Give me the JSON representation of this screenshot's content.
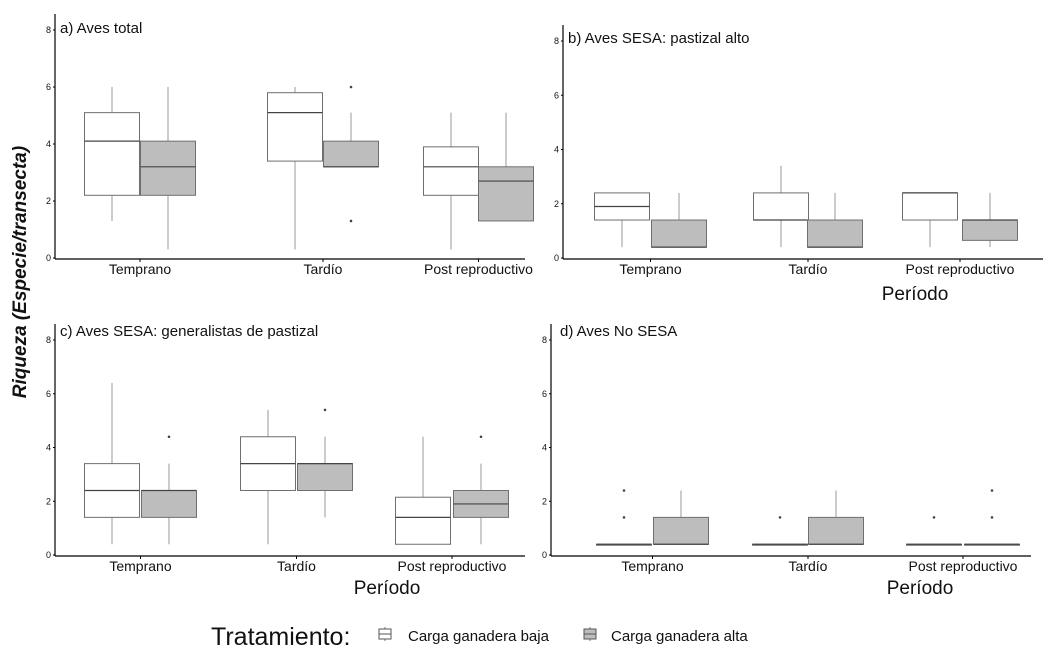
{
  "figure": {
    "ylabel": "Riqueza (Especie/transecta)",
    "legend": {
      "title": "Tratamiento:",
      "items": [
        {
          "label": "Carga ganadera baja",
          "color": "#ffffff"
        },
        {
          "label": "Carga ganadera alta",
          "color": "#bdbdbd"
        }
      ]
    }
  },
  "chart_data": [
    {
      "type": "boxplot",
      "title": "a) Aves total",
      "xlabel": "",
      "ylim": [
        0,
        8
      ],
      "yticks": [
        0,
        2,
        4,
        6,
        8
      ],
      "categories": [
        "Temprano",
        "Tardío",
        "Post reproductivo"
      ],
      "series": [
        {
          "name": "Carga ganadera baja",
          "color": "#ffffff",
          "stats": [
            {
              "min": 1.3,
              "q1": 2.2,
              "median": 4.1,
              "q3": 5.1,
              "max": 6.0,
              "outliers": []
            },
            {
              "min": 0.3,
              "q1": 3.4,
              "median": 5.1,
              "q3": 5.8,
              "max": 6.0,
              "outliers": []
            },
            {
              "min": 0.3,
              "q1": 2.2,
              "median": 3.2,
              "q3": 3.9,
              "max": 5.1,
              "outliers": []
            }
          ]
        },
        {
          "name": "Carga ganadera alta",
          "color": "#bdbdbd",
          "stats": [
            {
              "min": 0.3,
              "q1": 2.2,
              "median": 3.2,
              "q3": 4.1,
              "max": 6.0,
              "outliers": []
            },
            {
              "min": 3.2,
              "q1": 3.2,
              "median": 3.2,
              "q3": 4.1,
              "max": 5.1,
              "outliers": [
                1.3,
                6.0
              ]
            },
            {
              "min": 1.3,
              "q1": 1.3,
              "median": 2.7,
              "q3": 3.2,
              "max": 5.1,
              "outliers": []
            }
          ]
        }
      ]
    },
    {
      "type": "boxplot",
      "title": "b) Aves SESA:  pastizal alto",
      "xlabel": "Período",
      "ylim": [
        0,
        8
      ],
      "yticks": [
        0,
        2,
        4,
        6,
        8
      ],
      "categories": [
        "Temprano",
        "Tardío",
        "Post reproductivo"
      ],
      "series": [
        {
          "name": "Carga ganadera baja",
          "color": "#ffffff",
          "stats": [
            {
              "min": 0.4,
              "q1": 1.4,
              "median": 1.9,
              "q3": 2.4,
              "max": 2.4,
              "outliers": []
            },
            {
              "min": 0.4,
              "q1": 1.4,
              "median": 1.4,
              "q3": 2.4,
              "max": 3.4,
              "outliers": []
            },
            {
              "min": 0.4,
              "q1": 1.4,
              "median": 2.4,
              "q3": 2.4,
              "max": 2.4,
              "outliers": []
            }
          ]
        },
        {
          "name": "Carga ganadera alta",
          "color": "#bdbdbd",
          "stats": [
            {
              "min": 0.4,
              "q1": 0.4,
              "median": 0.4,
              "q3": 1.4,
              "max": 2.4,
              "outliers": []
            },
            {
              "min": 0.4,
              "q1": 0.4,
              "median": 0.4,
              "q3": 1.4,
              "max": 2.4,
              "outliers": []
            },
            {
              "min": 0.4,
              "q1": 0.65,
              "median": 1.4,
              "q3": 1.4,
              "max": 2.4,
              "outliers": []
            }
          ]
        }
      ]
    },
    {
      "type": "boxplot",
      "title": "c) Aves SESA: generalistas de pastizal",
      "xlabel": "Período",
      "ylim": [
        0,
        8
      ],
      "yticks": [
        0,
        2,
        4,
        6,
        8
      ],
      "categories": [
        "Temprano",
        "Tardío",
        "Post reproductivo"
      ],
      "series": [
        {
          "name": "Carga ganadera baja",
          "color": "#ffffff",
          "stats": [
            {
              "min": 0.4,
              "q1": 1.4,
              "median": 2.4,
              "q3": 3.4,
              "max": 6.4,
              "outliers": []
            },
            {
              "min": 0.4,
              "q1": 2.4,
              "median": 3.4,
              "q3": 4.4,
              "max": 5.4,
              "outliers": []
            },
            {
              "min": 0.4,
              "q1": 0.4,
              "median": 1.4,
              "q3": 2.15,
              "max": 4.4,
              "outliers": []
            }
          ]
        },
        {
          "name": "Carga ganadera alta",
          "color": "#bdbdbd",
          "stats": [
            {
              "min": 0.4,
              "q1": 1.4,
              "median": 2.4,
              "q3": 2.4,
              "max": 3.4,
              "outliers": [
                4.4
              ]
            },
            {
              "min": 1.4,
              "q1": 2.4,
              "median": 3.4,
              "q3": 3.4,
              "max": 4.4,
              "outliers": [
                5.4
              ]
            },
            {
              "min": 0.4,
              "q1": 1.4,
              "median": 1.9,
              "q3": 2.4,
              "max": 3.4,
              "outliers": [
                4.4
              ]
            }
          ]
        }
      ]
    },
    {
      "type": "boxplot",
      "title": "d) Aves No SESA",
      "xlabel": "Período",
      "ylim": [
        0,
        8
      ],
      "yticks": [
        0,
        2,
        4,
        6,
        8
      ],
      "categories": [
        "Temprano",
        "Tardío",
        "Post reproductivo"
      ],
      "series": [
        {
          "name": "Carga ganadera baja",
          "color": "#ffffff",
          "stats": [
            {
              "min": 0.4,
              "q1": 0.4,
              "median": 0.4,
              "q3": 0.4,
              "max": 0.4,
              "outliers": [
                1.4,
                2.4
              ]
            },
            {
              "min": 0.4,
              "q1": 0.4,
              "median": 0.4,
              "q3": 0.4,
              "max": 0.4,
              "outliers": [
                1.4
              ]
            },
            {
              "min": 0.4,
              "q1": 0.4,
              "median": 0.4,
              "q3": 0.4,
              "max": 0.4,
              "outliers": [
                1.4
              ]
            }
          ]
        },
        {
          "name": "Carga ganadera alta",
          "color": "#bdbdbd",
          "stats": [
            {
              "min": 0.4,
              "q1": 0.4,
              "median": 0.4,
              "q3": 1.4,
              "max": 2.4,
              "outliers": []
            },
            {
              "min": 0.4,
              "q1": 0.4,
              "median": 0.4,
              "q3": 1.4,
              "max": 2.4,
              "outliers": []
            },
            {
              "min": 0.4,
              "q1": 0.4,
              "median": 0.4,
              "q3": 0.4,
              "max": 0.4,
              "outliers": [
                1.4,
                2.4
              ]
            }
          ]
        }
      ]
    }
  ]
}
